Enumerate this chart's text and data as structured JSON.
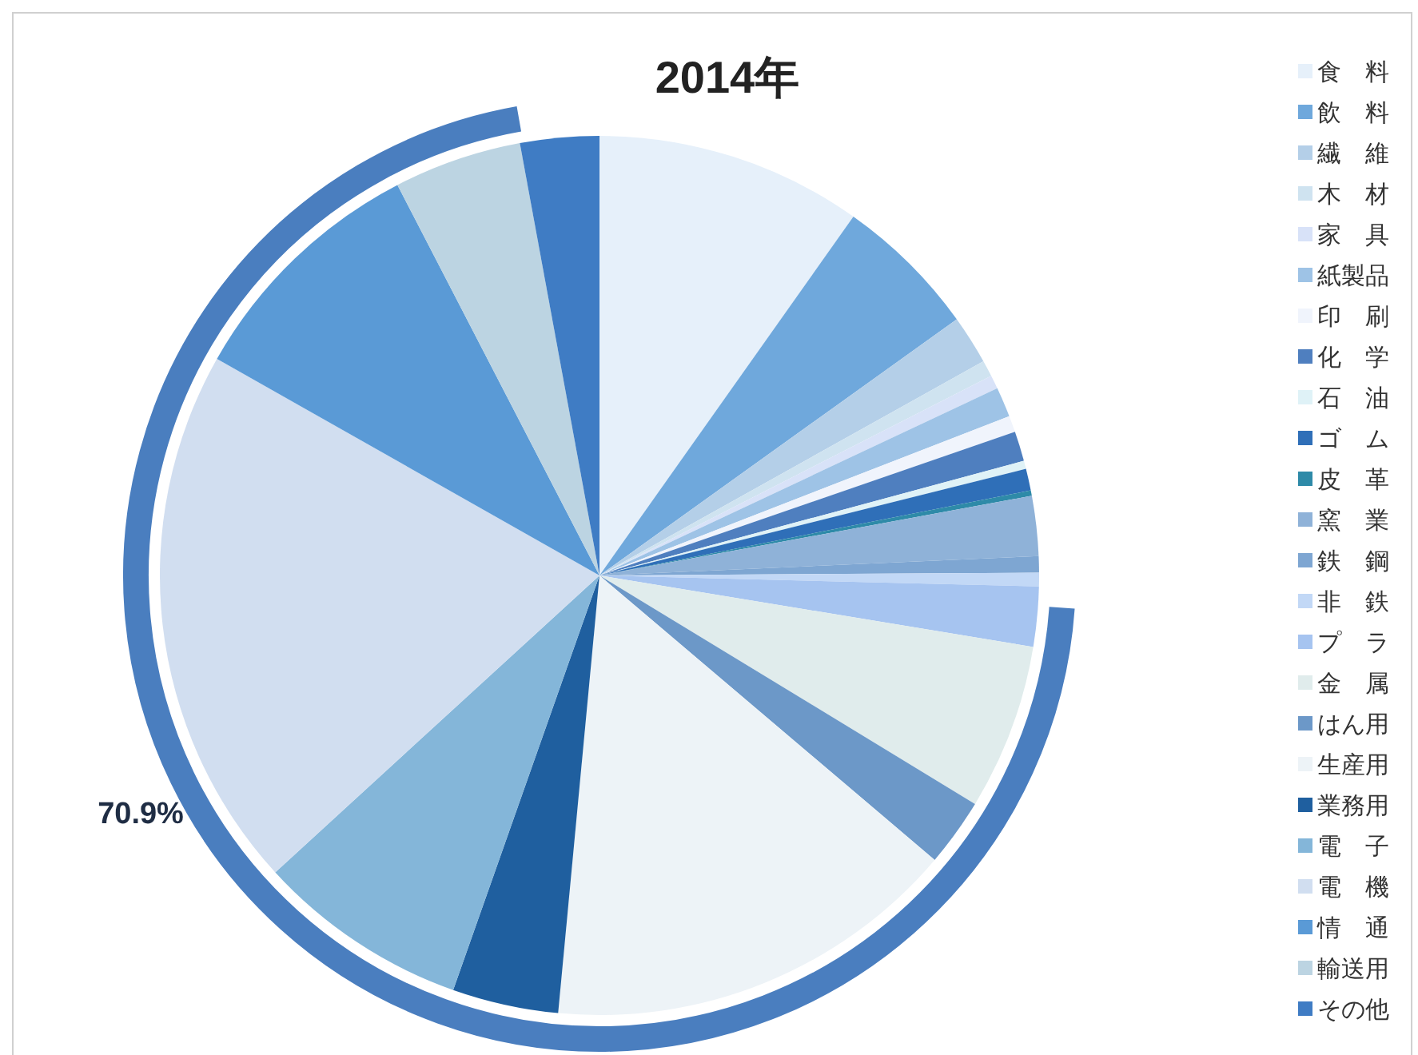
{
  "chart_data": {
    "type": "pie",
    "title": "2014年",
    "categories": [
      "食　料",
      "飲　料",
      "繊　維",
      "木　材",
      "家　具",
      "紙製品",
      "印　刷",
      "化　学",
      "石　油",
      "ゴ　ム",
      "皮　革",
      "窯　業",
      "鉄　鋼",
      "非　鉄",
      "プ　ラ",
      "金　属",
      "はん用",
      "生産用",
      "業務用",
      "電　子",
      "電　機",
      "情　通",
      "輸送用",
      "その他"
    ],
    "values": [
      9.8,
      5.3,
      1.8,
      0.6,
      0.5,
      1.1,
      0.6,
      1.1,
      0.3,
      0.8,
      0.2,
      2.2,
      0.6,
      0.5,
      2.2,
      6.1,
      2.5,
      15.3,
      3.9,
      7.8,
      20.0,
      9.2,
      4.7,
      2.9
    ],
    "colors": [
      "#e6f0fa",
      "#6fa8dc",
      "#b4cfe8",
      "#cfe3f0",
      "#d8e2f8",
      "#9ec3e6",
      "#f0f4fc",
      "#4f7fbf",
      "#dff2f7",
      "#2f6fb8",
      "#2e8aa8",
      "#8fb2d8",
      "#7ea6d2",
      "#c2d8f6",
      "#a6c4f0",
      "#e0ecec",
      "#6c98c8",
      "#edf3f7",
      "#1f5f9f",
      "#84b6d9",
      "#d1def0",
      "#5a9ad6",
      "#bcd4e2",
      "#3f7cc4"
    ],
    "legend": "right",
    "annotations": [
      "70.9%"
    ]
  }
}
